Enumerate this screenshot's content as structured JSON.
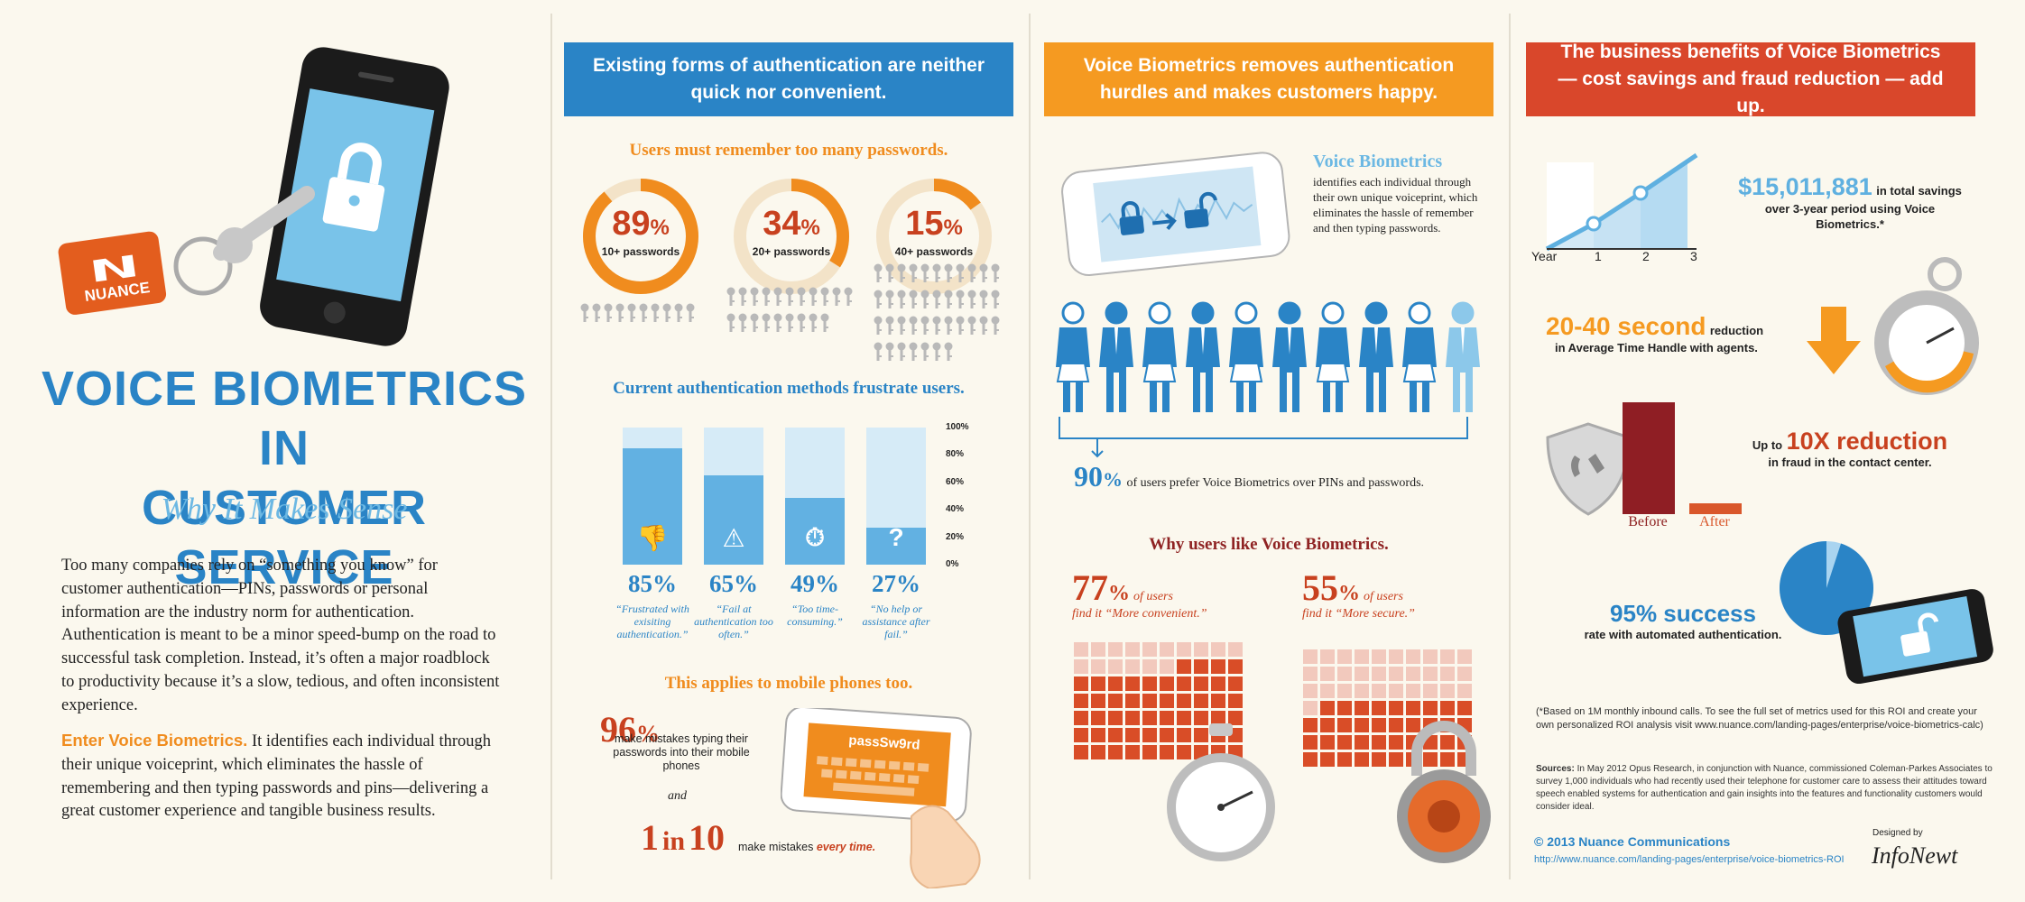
{
  "left": {
    "brand": "NUANCE",
    "title_line1": "VOICE BIOMETRICS IN",
    "title_line2": "CUSTOMER SERVICE",
    "subtitle": "Why It Makes Sense",
    "intro": "Too many companies rely on “something you know” for customer authentication—PINs, passwords or personal information are the industry norm for authentication. Authentication is meant to be a minor speed-bump on the road to successful task completion. Instead, it’s often a major roadblock to productivity because it’s a slow, tedious, and often inconsistent experience.",
    "enter_lead": "Enter Voice Biometrics.",
    "enter_body": " It identifies each individual through their unique voiceprint, which eliminates the hassle of remembering and then typing passwords and pins—delivering a great customer experience and tangible business results."
  },
  "col1": {
    "header": "Existing forms of authentication are neither quick nor convenient.",
    "passwords_title": "Users must remember too many passwords.",
    "rings": [
      {
        "pct_num": "89",
        "pct_sym": "%",
        "label": "10+ passwords",
        "value": 89,
        "keys": 10
      },
      {
        "pct_num": "34",
        "pct_sym": "%",
        "label": "20+ passwords",
        "value": 34,
        "keys": 20
      },
      {
        "pct_num": "15",
        "pct_sym": "%",
        "label": "40+ passwords",
        "value": 15,
        "keys": 40
      }
    ],
    "frustrate_title": "Current authentication methods frustrate users.",
    "bars": [
      {
        "pct": "85%",
        "value": 85,
        "caption": "“Frustrated with exisiting authentication.”",
        "icon": "thumbs-down-icon",
        "glyph": "👎"
      },
      {
        "pct": "65%",
        "value": 65,
        "caption": "“Fail at authentication too often.”",
        "icon": "warning-icon",
        "glyph": "⚠"
      },
      {
        "pct": "49%",
        "value": 49,
        "caption": "“Too time-consuming.”",
        "icon": "stopwatch-icon",
        "glyph": "⏱"
      },
      {
        "pct": "27%",
        "value": 27,
        "caption": "“No help or assistance after fail.”",
        "icon": "question-icon",
        "glyph": "?"
      }
    ],
    "axis": [
      "100%",
      "80%",
      "60%",
      "40%",
      "20%",
      "0%"
    ],
    "mobile_title": "This applies to mobile phones too.",
    "m96_num": "96",
    "m96_sym": "%",
    "m96_text": "make mistakes typing their passwords into their mobile phones",
    "and": "and",
    "one_in_ten_a": "1",
    "one_in_ten_in": "in",
    "one_in_ten_b": "10",
    "one_in_ten_text": "make mistakes",
    "every_time": "every time.",
    "phone_text": "passSw9rd"
  },
  "col2": {
    "header": "Voice Biometrics removes authentication hurdles and makes customers happy.",
    "vb_title": "Voice Biometrics",
    "vb_text": "identifies each individual through their own unique voiceprint, which eliminates the hassle of remember and then typing passwords.",
    "prefer_num": "90",
    "prefer_sym": "%",
    "prefer_text": "of users prefer Voice Biometrics over PINs and passwords.",
    "why_title": "Why users like Voice Biometrics.",
    "conv_num": "77",
    "conv_sym": "%",
    "conv_of": "of users",
    "conv_text": "find it “More convenient.”",
    "conv_value": 77,
    "sec_num": "55",
    "sec_sym": "%",
    "sec_of": "of users",
    "sec_text": "find it “More secure.”",
    "sec_value": 55
  },
  "col3": {
    "header": "The business benefits of Voice Biometrics — cost savings and fraud reduction — add up.",
    "chart_axis": [
      "Year",
      "1",
      "2",
      "3"
    ],
    "savings_amount": "$15,011,881",
    "savings_text1": "in total savings",
    "savings_text2": "over 3-year period using Voice Biometrics.*",
    "time_amount": "20-40 second",
    "time_text1": "reduction",
    "time_text2": "in Average Time Handle with agents.",
    "fraud_pre": "Up to",
    "fraud_amount": "10X reduction",
    "fraud_text": "in fraud in the contact center.",
    "before": "Before",
    "after": "After",
    "success_amount": "95% success",
    "success_text": "rate with automated authentication.",
    "success_value": 95,
    "footnote": "(*Based on 1M monthly inbound calls. To see the full set of metrics used for this ROI and create your own personalized ROI analysis visit www.nuance.com/landing-pages/enterprise/voice-biometrics-calc)",
    "sources_label": "Sources:",
    "sources_text": " In May 2012 Opus Research, in conjunction with Nuance, commissioned Coleman-Parkes Associates to survey 1,000 individuals who had recently used their telephone for customer care to assess their attitudes toward speech enabled systems for authentication and gain insights into the features and functionality customers would consider ideal.",
    "copyright": "© 2013 Nuance Communications",
    "url": "http://www.nuance.com/landing-pages/enterprise/voice-biometrics-ROI",
    "designed_by": "Designed by",
    "designer": "InfoNewt"
  },
  "chart_data": [
    {
      "type": "pie",
      "title": "Users must remember too many passwords.",
      "categories": [
        "10+ passwords",
        "20+ passwords",
        "40+ passwords"
      ],
      "values": [
        89,
        34,
        15
      ]
    },
    {
      "type": "bar",
      "title": "Current authentication methods frustrate users.",
      "categories": [
        "Frustrated with exisiting authentication.",
        "Fail at authentication too often.",
        "Too time-consuming.",
        "No help or assistance after fail."
      ],
      "values": [
        85,
        65,
        49,
        27
      ],
      "ylim": [
        0,
        100
      ]
    },
    {
      "type": "bar",
      "title": "Fraud reduction",
      "categories": [
        "Before",
        "After"
      ],
      "values": [
        10,
        1
      ]
    },
    {
      "type": "pie",
      "title": "95% success rate with automated authentication",
      "values": [
        95,
        5
      ]
    }
  ]
}
